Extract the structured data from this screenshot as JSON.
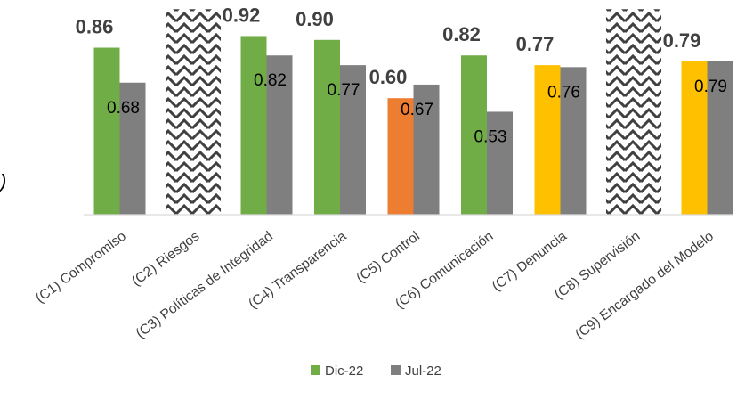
{
  "chart_data": {
    "type": "bar",
    "categories": [
      "(C1) Compromiso",
      "(C2) Riesgos",
      "(C3) Políticas de Integridad",
      "(C4) Transparencia",
      "(C5) Control",
      "(C6) Comunicación",
      "(C7) Denuncia",
      "(C8) Supervisión",
      "(C9) Encargado del Modelo"
    ],
    "series": [
      {
        "name": "Dic-22",
        "values": [
          0.86,
          null,
          0.92,
          0.9,
          0.6,
          0.82,
          0.77,
          null,
          0.79
        ],
        "labels": [
          "0.86",
          "",
          "0.92",
          "0.90",
          "0.60",
          "0.82",
          "0.77",
          "",
          "0.79"
        ],
        "bar_colors": [
          "#70ad47",
          null,
          "#70ad47",
          "#70ad47",
          "#ed7d31",
          "#70ad47",
          "#ffc000",
          null,
          "#ffc000"
        ]
      },
      {
        "name": "Jul-22",
        "values": [
          0.68,
          null,
          0.82,
          0.77,
          0.67,
          0.53,
          0.76,
          null,
          0.79
        ],
        "labels": [
          "0.68",
          "",
          "0.82",
          "0.77",
          "0.67",
          "0.53",
          "0.76",
          "",
          "0.79"
        ],
        "color": "#7f7f7f"
      }
    ],
    "hatched_categories": [
      "(C2) Riesgos",
      "(C8) Supervisión"
    ],
    "hatch_color": "#404040",
    "legend": {
      "placement": "bottom",
      "items": [
        {
          "label": "Dic-22",
          "color": "#70ad47"
        },
        {
          "label": "Jul-22",
          "color": "#7f7f7f"
        }
      ]
    },
    "edge_glyph": ")",
    "grid": false,
    "ylim": [
      0,
      1.12
    ]
  }
}
